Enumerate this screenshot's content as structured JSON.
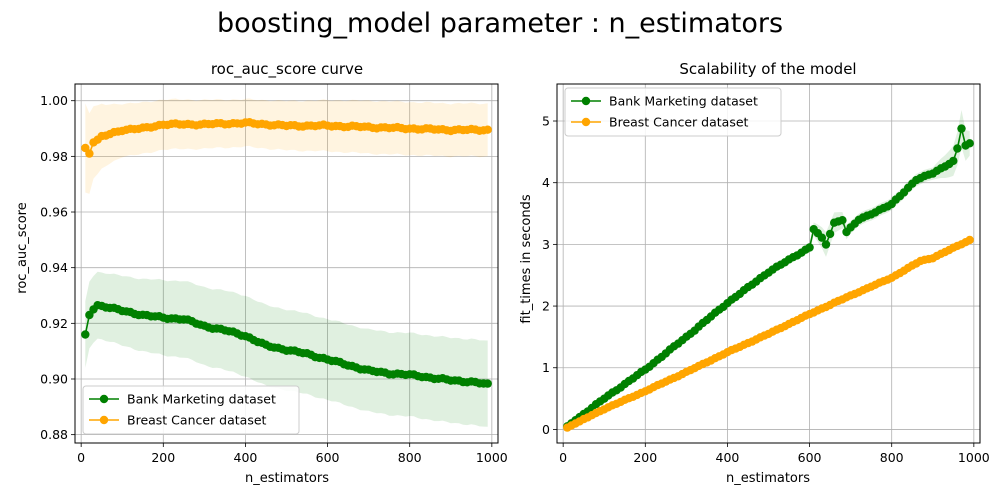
{
  "suptitle": "boosting_model parameter : n_estimators",
  "colors": {
    "bank": "#008000",
    "breast": "#FFA500"
  },
  "chart_data": [
    {
      "type": "line",
      "title": "roc_auc_score curve",
      "xlabel": "n_estimators",
      "ylabel": "roc_auc_score",
      "xlim": [
        -15,
        1015
      ],
      "ylim": [
        0.877,
        1.006
      ],
      "xticks": [
        0,
        200,
        400,
        600,
        800,
        1000
      ],
      "yticks": [
        0.88,
        0.9,
        0.92,
        0.94,
        0.96,
        0.98,
        1.0
      ],
      "ytick_format": 2,
      "grid": true,
      "legend": "lower left",
      "x_range": {
        "start": 10,
        "end": 990,
        "step": 10
      },
      "series": [
        {
          "name": "Bank Marketing dataset",
          "color": "#008000",
          "anchors": [
            [
              10,
              0.916
            ],
            [
              20,
              0.923
            ],
            [
              30,
              0.925
            ],
            [
              40,
              0.9265
            ],
            [
              60,
              0.926
            ],
            [
              100,
              0.9245
            ],
            [
              150,
              0.923
            ],
            [
              200,
              0.922
            ],
            [
              250,
              0.9215
            ],
            [
              300,
              0.919
            ],
            [
              350,
              0.9175
            ],
            [
              400,
              0.9155
            ],
            [
              450,
              0.912
            ],
            [
              500,
              0.9105
            ],
            [
              550,
              0.909
            ],
            [
              600,
              0.907
            ],
            [
              650,
              0.905
            ],
            [
              700,
              0.903
            ],
            [
              750,
              0.902
            ],
            [
              800,
              0.9015
            ],
            [
              850,
              0.9005
            ],
            [
              900,
              0.8995
            ],
            [
              950,
              0.899
            ],
            [
              990,
              0.898
            ]
          ],
          "band_anchors": [
            [
              10,
              0.012
            ],
            [
              50,
              0.012
            ],
            [
              200,
              0.0135
            ],
            [
              400,
              0.0145
            ],
            [
              600,
              0.0145
            ],
            [
              800,
              0.015
            ],
            [
              990,
              0.0155
            ]
          ]
        },
        {
          "name": "Breast Cancer dataset",
          "color": "#FFA500",
          "anchors": [
            [
              10,
              0.983
            ],
            [
              20,
              0.981
            ],
            [
              30,
              0.985
            ],
            [
              50,
              0.987
            ],
            [
              70,
              0.988
            ],
            [
              100,
              0.9895
            ],
            [
              150,
              0.99
            ],
            [
              200,
              0.9915
            ],
            [
              300,
              0.9915
            ],
            [
              400,
              0.992
            ],
            [
              450,
              0.9915
            ],
            [
              500,
              0.991
            ],
            [
              600,
              0.991
            ],
            [
              700,
              0.9905
            ],
            [
              800,
              0.99
            ],
            [
              900,
              0.9895
            ],
            [
              990,
              0.9895
            ]
          ],
          "band_anchors": [
            [
              10,
              0.016
            ],
            [
              30,
              0.013
            ],
            [
              60,
              0.011
            ],
            [
              100,
              0.0095
            ],
            [
              200,
              0.009
            ],
            [
              400,
              0.0085
            ],
            [
              700,
              0.0095
            ],
            [
              990,
              0.0095
            ]
          ]
        }
      ]
    },
    {
      "type": "line",
      "title": "Scalability of the model",
      "xlabel": "n_estimators",
      "ylabel": "fit_times in seconds",
      "xlim": [
        -15,
        1015
      ],
      "ylim": [
        -0.22,
        5.6
      ],
      "xticks": [
        0,
        200,
        400,
        600,
        800,
        1000
      ],
      "yticks": [
        0,
        1,
        2,
        3,
        4,
        5
      ],
      "ytick_format": 0,
      "grid": true,
      "legend": "upper left",
      "x_range": {
        "start": 10,
        "end": 990,
        "step": 10
      },
      "series": [
        {
          "name": "Bank Marketing dataset",
          "color": "#008000",
          "anchors": [
            [
              10,
              0.05
            ],
            [
              100,
              0.5
            ],
            [
              200,
              0.97
            ],
            [
              300,
              1.5
            ],
            [
              400,
              2.05
            ],
            [
              500,
              2.55
            ],
            [
              600,
              2.95
            ],
            [
              610,
              3.25
            ],
            [
              630,
              3.1
            ],
            [
              640,
              3.0
            ],
            [
              660,
              3.35
            ],
            [
              680,
              3.4
            ],
            [
              690,
              3.2
            ],
            [
              720,
              3.4
            ],
            [
              800,
              3.65
            ],
            [
              860,
              4.05
            ],
            [
              900,
              4.15
            ],
            [
              950,
              4.35
            ],
            [
              960,
              4.55
            ],
            [
              970,
              4.88
            ],
            [
              980,
              4.6
            ],
            [
              990,
              4.63
            ]
          ],
          "band_anchors": [
            [
              10,
              0.02
            ],
            [
              500,
              0.04
            ],
            [
              600,
              0.08
            ],
            [
              640,
              0.2
            ],
            [
              700,
              0.1
            ],
            [
              900,
              0.1
            ],
            [
              970,
              0.3
            ],
            [
              990,
              0.2
            ]
          ]
        },
        {
          "name": "Breast Cancer dataset",
          "color": "#FFA500",
          "anchors": [
            [
              10,
              0.03
            ],
            [
              100,
              0.33
            ],
            [
              200,
              0.62
            ],
            [
              300,
              0.93
            ],
            [
              400,
              1.25
            ],
            [
              500,
              1.55
            ],
            [
              600,
              1.87
            ],
            [
              700,
              2.17
            ],
            [
              800,
              2.46
            ],
            [
              870,
              2.73
            ],
            [
              900,
              2.78
            ],
            [
              990,
              3.07
            ]
          ],
          "band_anchors": [
            [
              10,
              0.01
            ],
            [
              990,
              0.03
            ]
          ]
        }
      ]
    }
  ]
}
